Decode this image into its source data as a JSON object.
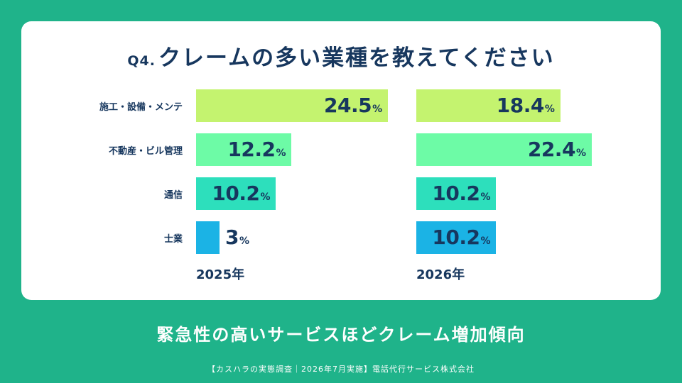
{
  "title": {
    "prefix": "Q4.",
    "text": "クレームの多い業種を教えてください"
  },
  "chart_data": {
    "type": "bar",
    "orientation": "horizontal",
    "categories": [
      "施工・設備・メンテ",
      "不動産・ビル管理",
      "通信",
      "士業"
    ],
    "unit": "%",
    "xlim": [
      0,
      24.5
    ],
    "series": [
      {
        "name": "2025年",
        "values": [
          24.5,
          12.2,
          10.2,
          3
        ]
      },
      {
        "name": "2026年",
        "values": [
          18.4,
          22.4,
          10.2,
          10.2
        ]
      }
    ],
    "bar_colors": [
      "#c4f36f",
      "#6dfba6",
      "#2ddfbc",
      "#1bb3e5"
    ]
  },
  "subtitle": "緊急性の高いサービスほどクレーム増加傾向",
  "footer": "【カスハラの実態調査｜2026年7月実施】電話代行サービス株式会社"
}
